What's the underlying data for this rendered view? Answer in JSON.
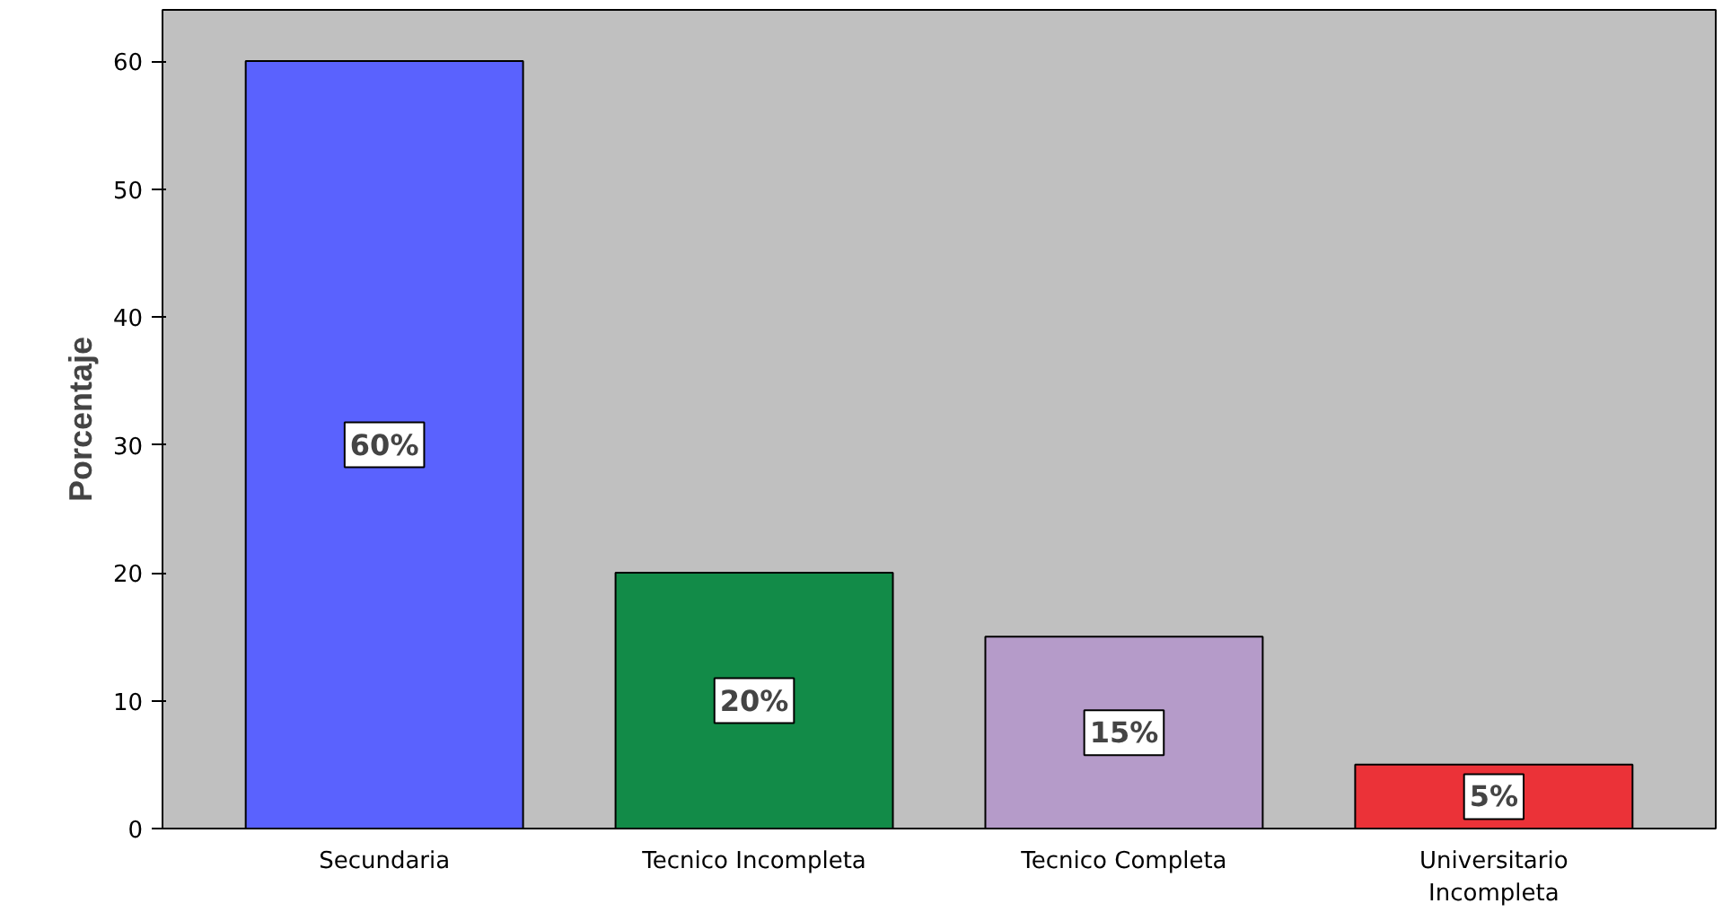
{
  "chart_data": {
    "type": "bar",
    "ylabel": "Porcentaje",
    "categories": [
      "Secundaria",
      "Tecnico Incompleta",
      "Tecnico Completa",
      "Universitario Incompleta"
    ],
    "values": [
      60,
      20,
      15,
      5
    ],
    "colors": [
      "#5a62fe",
      "#128b48",
      "#b59bc9",
      "#eb3238"
    ],
    "value_labels": [
      "60%",
      "20%",
      "15%",
      "5%"
    ],
    "ylim": [
      0,
      64
    ],
    "yticks": [
      0,
      10,
      20,
      30,
      40,
      50,
      60
    ],
    "grid": false
  }
}
